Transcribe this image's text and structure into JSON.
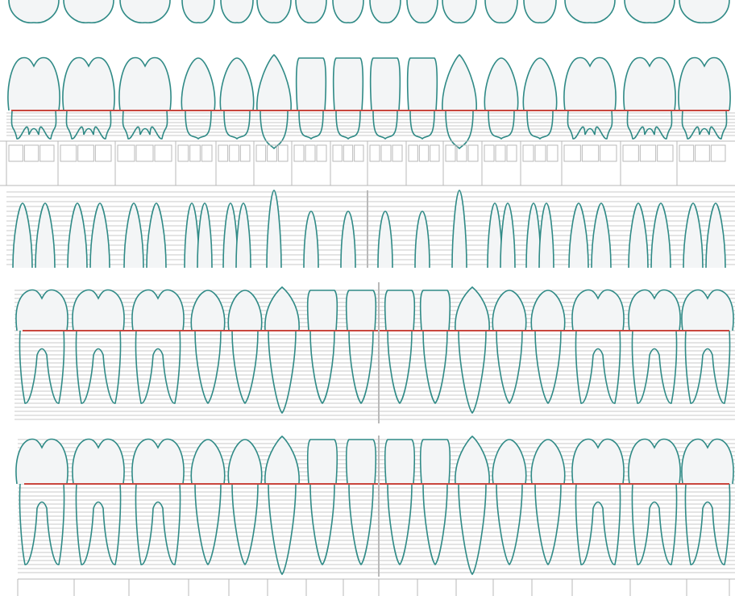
{
  "chart": {
    "colors": {
      "tooth_outline": "#2f8a86",
      "tooth_fill": "#f3f5f6",
      "cej_line": "#c9463d",
      "grid_line": "#c9c9c9",
      "cell_border": "#b9b9b9",
      "background": "#ffffff"
    },
    "teeth_per_row": 16,
    "rows": [
      {
        "id": "upper-crowns-partial",
        "view": "crown-tips",
        "jaw": "upper"
      },
      {
        "id": "upper-buccal",
        "view": "buccal",
        "jaw": "upper"
      },
      {
        "id": "upper-data-cells",
        "view": "cells",
        "jaw": "upper",
        "cells_per_tooth": 3
      },
      {
        "id": "upper-palatal-roots",
        "view": "roots",
        "jaw": "upper"
      },
      {
        "id": "lower-lingual",
        "view": "lingual",
        "jaw": "lower"
      },
      {
        "id": "lower-buccal",
        "view": "buccal",
        "jaw": "lower"
      },
      {
        "id": "lower-data-cells",
        "view": "cells",
        "jaw": "lower",
        "cells_per_tooth": 1
      }
    ],
    "tooth_types": [
      "molar",
      "molar",
      "molar",
      "premolar",
      "premolar",
      "canine",
      "incisor",
      "incisor",
      "incisor",
      "incisor",
      "canine",
      "premolar",
      "premolar",
      "molar",
      "molar",
      "molar"
    ]
  }
}
